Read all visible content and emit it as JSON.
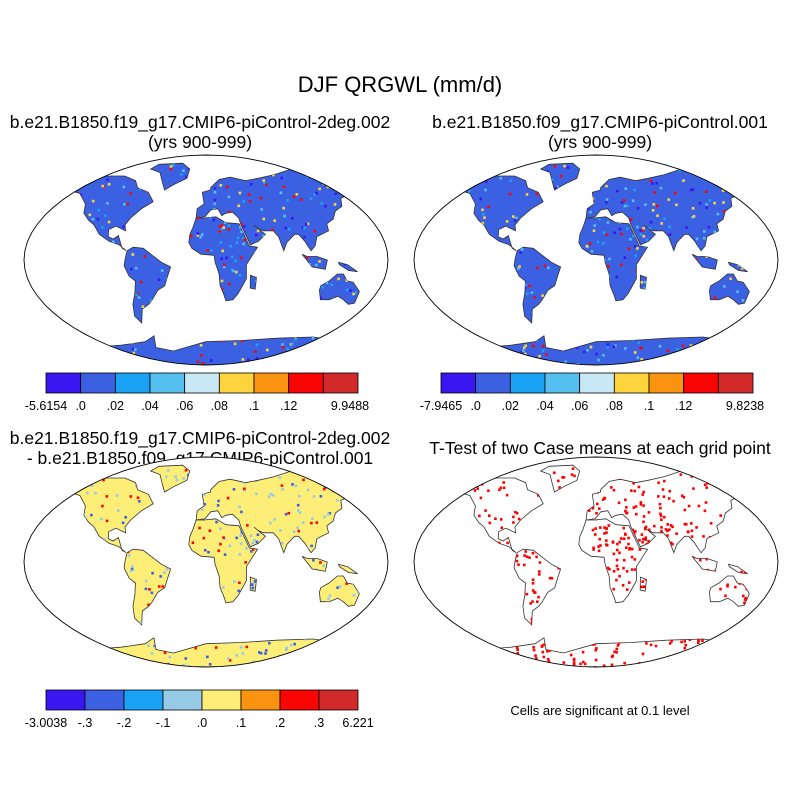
{
  "figure": {
    "title": "DJF QRGWL (mm/d)"
  },
  "panels": [
    {
      "id": "case1",
      "title_line1": "b.e21.B1850.f19_g17.CMIP6-piControl-2deg.002",
      "title_line2": "(yrs 900-999)",
      "colorbar": {
        "colors": [
          "#3a17f0",
          "#3b61e2",
          "#1aa2f4",
          "#55c0f0",
          "#c8e8f6",
          "#fdd43c",
          "#fa9410",
          "#f80504",
          "#d22a2a"
        ],
        "labels": [
          "-5.6154",
          ".0",
          ".02",
          ".04",
          ".06",
          ".08",
          ".1",
          ".12",
          "9.9488"
        ]
      },
      "map_fill": "#3b61e2"
    },
    {
      "id": "case2",
      "title_line1": "b.e21.B1850.f09_g17.CMIP6-piControl.001",
      "title_line2": "(yrs 900-999)",
      "colorbar": {
        "colors": [
          "#3a17f0",
          "#3b61e2",
          "#1aa2f4",
          "#55c0f0",
          "#c8e8f6",
          "#fdd43c",
          "#fa9410",
          "#f80504",
          "#d22a2a"
        ],
        "labels": [
          "-7.9465",
          ".0",
          ".02",
          ".04",
          ".06",
          ".08",
          ".1",
          ".12",
          "9.8238"
        ]
      },
      "map_fill": "#3b61e2"
    },
    {
      "id": "difference",
      "title_line1": "b.e21.B1850.f19_g17.CMIP6-piControl-2deg.002",
      "title_line2": "- b.e21.B1850.f09_g17.CMIP6-piControl.001",
      "colorbar": {
        "colors": [
          "#3a17f0",
          "#3b61e2",
          "#1aa2f4",
          "#95cbe6",
          "#fdee78",
          "#fa9410",
          "#f80504",
          "#d22a2a"
        ],
        "labels": [
          "-3.0038",
          "-.3",
          "-.2",
          "-.1",
          ".0",
          ".1",
          ".2",
          ".3",
          "6.221"
        ]
      },
      "map_fill": "#fdee78"
    },
    {
      "id": "ttest",
      "title_line1": "T-Test of two Case means at each grid point",
      "note": "Cells are significant at 0.1 level",
      "map_fill": "#ff0000"
    }
  ]
}
